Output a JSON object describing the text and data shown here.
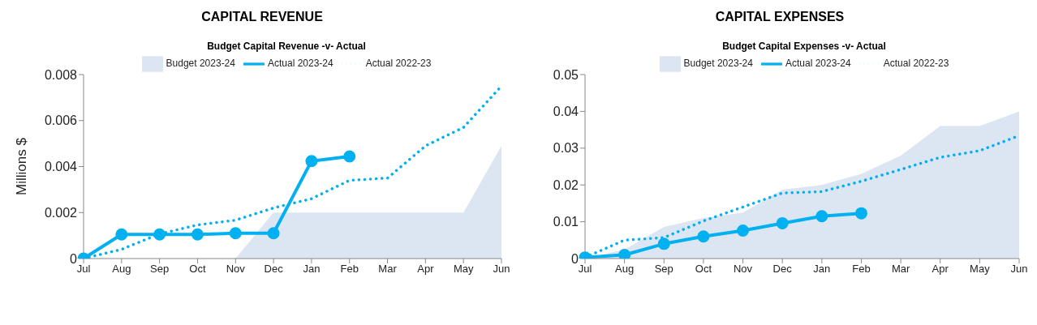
{
  "chart_data": [
    {
      "type": "line",
      "title": "CAPITAL REVENUE",
      "subtitle": "Budget Capital Revenue -v- Actual",
      "ylabel": "Millions $",
      "categories": [
        "Jul",
        "Aug",
        "Sep",
        "Oct",
        "Nov",
        "Dec",
        "Jan",
        "Feb",
        "Mar",
        "Apr",
        "May",
        "Jun"
      ],
      "ylim": [
        0,
        0.008
      ],
      "yticks": [
        0,
        0.002,
        0.004,
        0.006,
        0.008
      ],
      "grid": false,
      "legend": "top",
      "series": [
        {
          "name": "Budget 2023-24",
          "type": "area",
          "color": "#dce6f2",
          "values": [
            0,
            0,
            0,
            0,
            0,
            0.002,
            0.002,
            0.002,
            0.002,
            0.002,
            0.002,
            0.0049
          ]
        },
        {
          "name": "Actual 2023-24",
          "marker": "circle",
          "line_style": "solid",
          "color": "#00b0f0",
          "values": [
            0,
            0.00105,
            0.00105,
            0.00105,
            0.0011,
            0.0011,
            0.00424,
            0.00444,
            null,
            null,
            null,
            null
          ]
        },
        {
          "name": "Actual 2022-23",
          "marker": "none",
          "line_style": "dotted",
          "color": "#00b0f0",
          "values": [
            0,
            0.0004,
            0.00107,
            0.00146,
            0.00167,
            0.0022,
            0.0026,
            0.0034,
            0.0035,
            0.0049,
            0.0057,
            0.0075
          ]
        }
      ]
    },
    {
      "type": "line",
      "title": "CAPITAL EXPENSES",
      "subtitle": "Budget Capital Expenses -v- Actual",
      "categories": [
        "Jul",
        "Aug",
        "Sep",
        "Oct",
        "Nov",
        "Dec",
        "Jan",
        "Feb",
        "Mar",
        "Apr",
        "May",
        "Jun"
      ],
      "ylim": [
        0,
        0.05
      ],
      "yticks": [
        0,
        0.01,
        0.02,
        0.03,
        0.04,
        0.05
      ],
      "grid": false,
      "legend": "top",
      "series": [
        {
          "name": "Budget 2023-24",
          "type": "area",
          "color": "#dce6f2",
          "values": [
            0,
            0.0025,
            0.0086,
            0.011,
            0.0125,
            0.0187,
            0.02,
            0.023,
            0.028,
            0.036,
            0.036,
            0.04
          ]
        },
        {
          "name": "Actual 2023-24",
          "marker": "circle",
          "line_style": "solid",
          "color": "#00b0f0",
          "values": [
            0.0003,
            0.001,
            0.004,
            0.006,
            0.0076,
            0.0096,
            0.0115,
            0.0123,
            null,
            null,
            null,
            null
          ]
        },
        {
          "name": "Actual 2022-23",
          "marker": "none",
          "line_style": "dotted",
          "color": "#00b0f0",
          "values": [
            0.0003,
            0.005,
            0.0057,
            0.0102,
            0.014,
            0.0178,
            0.0182,
            0.021,
            0.0242,
            0.0275,
            0.0293,
            0.0334
          ]
        }
      ]
    }
  ]
}
